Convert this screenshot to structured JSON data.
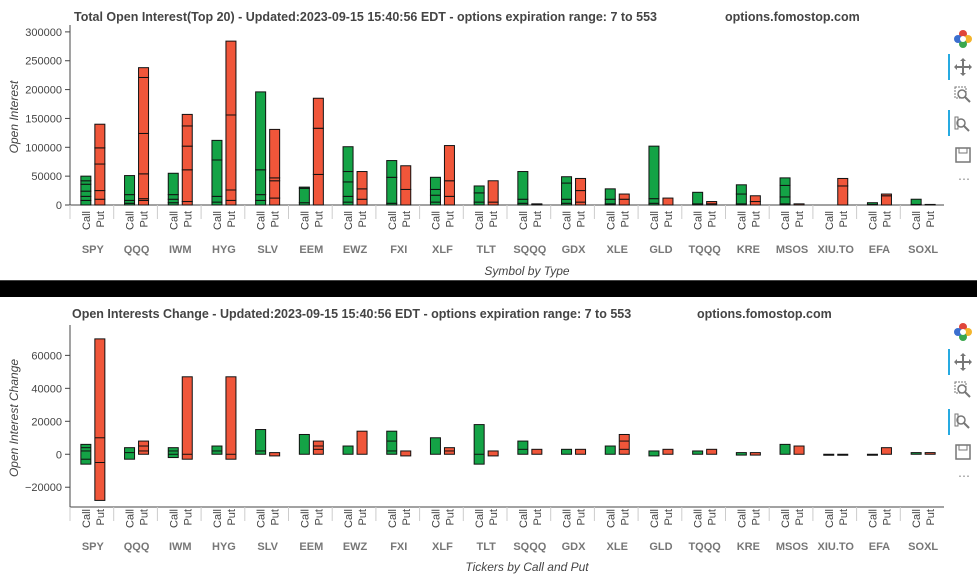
{
  "symbols": [
    "SPY",
    "QQQ",
    "IWM",
    "HYG",
    "SLV",
    "EEM",
    "EWZ",
    "FXI",
    "XLF",
    "TLT",
    "SQQQ",
    "GDX",
    "XLE",
    "GLD",
    "TQQQ",
    "KRE",
    "MSOS",
    "XIU.TO",
    "EFA",
    "SOXL"
  ],
  "type_labels": [
    "Call",
    "Put"
  ],
  "colors": {
    "call": "#14a346",
    "put": "#f0563a",
    "outline": "#111111",
    "axis": "#444444"
  },
  "site": "options.fomostop.com",
  "toolbar_icons": [
    "bokeh-logo-icon",
    "pan-icon",
    "box-zoom-icon",
    "wheel-zoom-icon",
    "save-icon",
    "more-icon"
  ],
  "chart_data": [
    {
      "type": "bar",
      "title": "Total Open Interest(Top 20) - Updated:2023-09-15 15:40:56 EDT - options expiration range: 7 to 553",
      "xlabel": "Symbol by Type",
      "ylabel": "Open Interest",
      "ylim": [
        0,
        305000
      ],
      "yticks": [
        0,
        50000,
        100000,
        150000,
        200000,
        250000,
        300000
      ],
      "ytick_labels": [
        "0",
        "50000",
        "100000",
        "150000",
        "200000",
        "250000",
        "300000"
      ],
      "grid": false,
      "stacked": true,
      "categories": [
        "SPY",
        "QQQ",
        "IWM",
        "HYG",
        "SLV",
        "EEM",
        "EWZ",
        "FXI",
        "XLF",
        "TLT",
        "SQQQ",
        "GDX",
        "XLE",
        "GLD",
        "TQQQ",
        "KRE",
        "MSOS",
        "XIU.TO",
        "EFA",
        "SOXL"
      ],
      "series": [
        {
          "name": "Call",
          "stacks": [
            [
              8000,
              7000,
              9000,
              12000,
              6000,
              8000
            ],
            [
              3000,
              5000,
              10000,
              33000
            ],
            [
              4000,
              6000,
              8000,
              37000
            ],
            [
              5000,
              10000,
              63000,
              34000
            ],
            [
              8000,
              10000,
              43000,
              135000
            ],
            [
              4000,
              25000,
              2000
            ],
            [
              5000,
              10000,
              25000,
              18000,
              43000
            ],
            [
              3000,
              45000,
              29000
            ],
            [
              5000,
              12000,
              10000,
              21000
            ],
            [
              5000,
              16000,
              12000
            ],
            [
              3000,
              7000,
              48000
            ],
            [
              3000,
              7000,
              28000,
              11000
            ],
            [
              2000,
              8000,
              18000
            ],
            [
              3000,
              8000,
              91000
            ],
            [
              2000,
              20000
            ],
            [
              2000,
              17000,
              16000
            ],
            [
              2000,
              12000,
              20000,
              13000
            ],
            [],
            [
              1000,
              3000
            ],
            [
              1000,
              9000
            ]
          ]
        },
        {
          "name": "Put",
          "stacks": [
            [
              10000,
              15000,
              46000,
              28000,
              41000
            ],
            [
              8000,
              3000,
              43000,
              70000,
              97000,
              17000
            ],
            [
              6000,
              55000,
              41000,
              35000,
              20000
            ],
            [
              8000,
              18000,
              130000,
              128000
            ],
            [
              12000,
              30000,
              5000,
              84000
            ],
            [
              53000,
              80000,
              52000
            ],
            [
              10000,
              18000,
              30000
            ],
            [
              27000,
              41000
            ],
            [
              15000,
              27000,
              61000
            ],
            [
              5000,
              37000
            ],
            [
              1000,
              1000
            ],
            [
              5000,
              20000,
              21000
            ],
            [
              10000,
              9000
            ],
            [
              12000
            ],
            [
              2000,
              4000
            ],
            [
              6000,
              10000
            ],
            [
              2000
            ],
            [
              33000,
              13000
            ],
            [
              16000,
              3000
            ],
            [
              1000
            ]
          ]
        }
      ]
    },
    {
      "type": "bar",
      "title": "Open Interests Change - Updated:2023-09-15 15:40:56 EDT - options expiration range: 7 to 553",
      "xlabel": "Tickers by Call and Put",
      "ylabel": "Open Interest Change",
      "ylim": [
        -32000,
        76000
      ],
      "yticks": [
        -20000,
        0,
        20000,
        40000,
        60000
      ],
      "ytick_labels": [
        "−20000",
        "0",
        "20000",
        "40000",
        "60000"
      ],
      "grid": false,
      "stacked": true,
      "categories": [
        "SPY",
        "QQQ",
        "IWM",
        "HYG",
        "SLV",
        "EEM",
        "EWZ",
        "FXI",
        "XLF",
        "TLT",
        "SQQQ",
        "GDX",
        "XLE",
        "GLD",
        "TQQQ",
        "KRE",
        "MSOS",
        "XIU.TO",
        "EFA",
        "SOXL"
      ],
      "series": [
        {
          "name": "Call",
          "bars": [
            [
              -6000,
              6000,
              [
                -3000,
                2000,
                4000
              ]
            ],
            [
              -3000,
              4000,
              [
                1000
              ]
            ],
            [
              -2000,
              4000,
              [
                0,
                2000
              ]
            ],
            [
              0,
              5000,
              [
                2000
              ]
            ],
            [
              0,
              15000,
              [
                2000
              ]
            ],
            [
              0,
              12000,
              []
            ],
            [
              0,
              5000,
              []
            ],
            [
              0,
              14000,
              [
                2000,
                8000
              ]
            ],
            [
              0,
              10000,
              []
            ],
            [
              -6000,
              18000,
              [
                0
              ]
            ],
            [
              0,
              8000,
              [
                3000
              ]
            ],
            [
              0,
              3000,
              []
            ],
            [
              0,
              5000,
              []
            ],
            [
              -1000,
              2000,
              []
            ],
            [
              0,
              2000,
              []
            ],
            [
              -500,
              1000,
              []
            ],
            [
              0,
              6000,
              []
            ],
            [
              0,
              0,
              []
            ],
            [
              -500,
              0,
              []
            ],
            [
              0,
              1000,
              []
            ]
          ]
        },
        {
          "name": "Put",
          "bars": [
            [
              -28000,
              70000,
              [
                -5000,
                10000
              ]
            ],
            [
              0,
              8000,
              [
                2000,
                5000
              ]
            ],
            [
              -3000,
              47000,
              [
                0
              ]
            ],
            [
              -3000,
              47000,
              [
                0
              ]
            ],
            [
              -1000,
              1000,
              []
            ],
            [
              0,
              8000,
              [
                3000,
                5000
              ]
            ],
            [
              0,
              14000,
              []
            ],
            [
              -1000,
              2000,
              []
            ],
            [
              0,
              4000,
              [
                2000
              ]
            ],
            [
              -1000,
              2000,
              []
            ],
            [
              0,
              3000,
              []
            ],
            [
              0,
              3000,
              []
            ],
            [
              0,
              12000,
              [
                3000,
                8000
              ]
            ],
            [
              0,
              3000,
              []
            ],
            [
              0,
              3000,
              []
            ],
            [
              -500,
              1000,
              []
            ],
            [
              0,
              5000,
              []
            ],
            [
              -500,
              0,
              []
            ],
            [
              0,
              4000,
              []
            ],
            [
              0,
              1000,
              []
            ]
          ]
        }
      ]
    }
  ]
}
